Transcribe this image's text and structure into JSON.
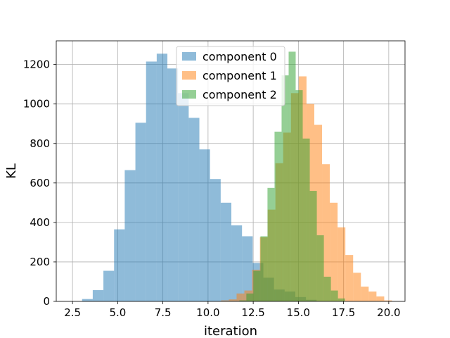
{
  "chart_data": {
    "type": "bar",
    "subtype": "overlapping-histogram",
    "xlabel": "iteration",
    "ylabel": "KL",
    "xlim": [
      1.6,
      20.9
    ],
    "ylim": [
      0,
      1320
    ],
    "xticks": [
      2.5,
      5.0,
      7.5,
      10.0,
      12.5,
      15.0,
      17.5,
      20.0
    ],
    "xtick_labels": [
      "2.5",
      "5.0",
      "7.5",
      "10.0",
      "12.5",
      "15.0",
      "17.5",
      "20.0"
    ],
    "yticks": [
      0,
      200,
      400,
      600,
      800,
      1000,
      1200
    ],
    "ytick_labels": [
      "0",
      "200",
      "400",
      "600",
      "800",
      "1000",
      "1200"
    ],
    "grid": true,
    "legend_position": "top-center",
    "bar_alpha": 0.5,
    "series": [
      {
        "name": "component 0",
        "color": "#1f77b4",
        "bin_edges": [
          3.03,
          3.62,
          4.21,
          4.8,
          5.39,
          5.98,
          6.57,
          7.16,
          7.75,
          8.34,
          8.93,
          9.52,
          10.11,
          10.7,
          11.29,
          11.88,
          12.47,
          13.06,
          13.65,
          14.24,
          14.83,
          15.42,
          16.01
        ],
        "counts": [
          12,
          57,
          155,
          365,
          665,
          905,
          1215,
          1255,
          1180,
          1055,
          930,
          770,
          620,
          500,
          385,
          330,
          195,
          120,
          60,
          50,
          22,
          8
        ]
      },
      {
        "name": "component 1",
        "color": "#ff7f0e",
        "bin_edges": [
          10.72,
          11.15,
          11.58,
          12.01,
          12.44,
          12.87,
          13.3,
          13.73,
          14.16,
          14.59,
          15.02,
          15.45,
          15.88,
          16.31,
          16.74,
          17.17,
          17.6,
          18.03,
          18.46,
          18.89,
          19.32,
          19.75,
          20.18
        ],
        "counts": [
          5,
          10,
          40,
          55,
          160,
          325,
          465,
          700,
          855,
          1055,
          1140,
          1000,
          895,
          695,
          500,
          375,
          235,
          145,
          75,
          50,
          25,
          5
        ]
      },
      {
        "name": "component 2",
        "color": "#2ca02c",
        "bin_edges": [
          11.73,
          12.12,
          12.51,
          12.9,
          13.29,
          13.68,
          14.07,
          14.46,
          14.85,
          15.24,
          15.63,
          16.02,
          16.41,
          16.8,
          17.19,
          17.58
        ],
        "counts": [
          5,
          40,
          155,
          330,
          575,
          860,
          1145,
          1265,
          1070,
          825,
          560,
          335,
          125,
          55,
          15
        ]
      }
    ]
  }
}
